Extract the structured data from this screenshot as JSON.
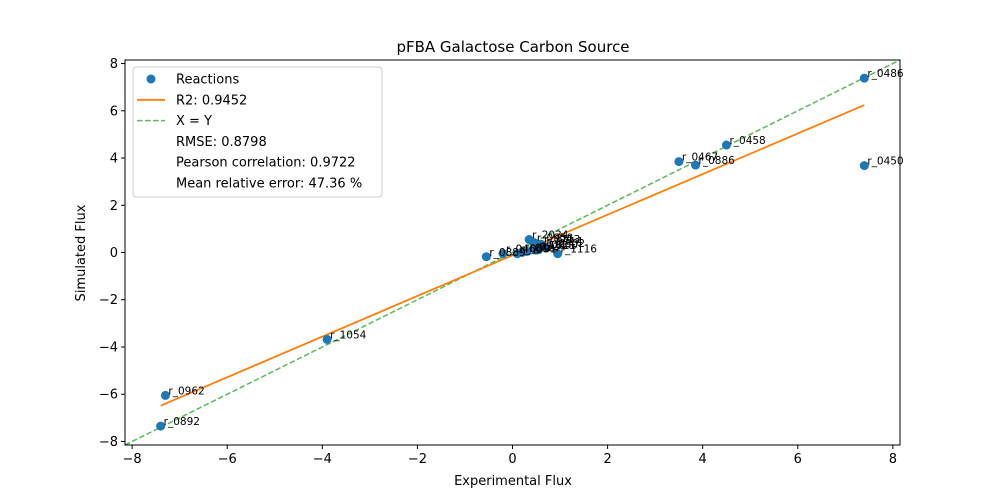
{
  "chart_data": {
    "type": "scatter",
    "title": "pFBA Galactose Carbon Source",
    "xlabel": "Experimental Flux",
    "ylabel": "Simulated Flux",
    "xlim": [
      -8.15,
      8.15
    ],
    "ylim": [
      -8.15,
      8.15
    ],
    "xticks": [
      -8,
      -6,
      -4,
      -2,
      0,
      2,
      4,
      6,
      8
    ],
    "yticks": [
      -8,
      -6,
      -4,
      -2,
      0,
      2,
      4,
      6,
      8
    ],
    "tick_labels": [
      "−8",
      "−6",
      "−4",
      "−2",
      "0",
      "2",
      "4",
      "6",
      "8"
    ],
    "grid": false,
    "legend_position": "top-left",
    "colors": {
      "points": "#1f77b4",
      "fit_line": "#ff7f0e",
      "identity_line": "#5cb85c"
    },
    "legend": [
      {
        "label": "Reactions",
        "marker": "point"
      },
      {
        "label": "R2: 0.9452",
        "marker": "solid-line"
      },
      {
        "label": "X = Y",
        "marker": "dashed-line"
      },
      {
        "label": "RMSE: 0.8798",
        "marker": "none"
      },
      {
        "label": "Pearson correlation: 0.9722",
        "marker": "none"
      },
      {
        "label": "Mean relative error: 47.36 %",
        "marker": "none"
      }
    ],
    "fit_line": {
      "slope": 0.86,
      "intercept": -0.12,
      "x_range": [
        -7.4,
        7.4
      ]
    },
    "identity_line": {
      "x_range": [
        -8.15,
        8.15
      ]
    },
    "points": [
      {
        "x": 7.4,
        "y": 7.38,
        "label": "r_0486"
      },
      {
        "x": 7.4,
        "y": 3.68,
        "label": "r_0450"
      },
      {
        "x": 4.5,
        "y": 4.55,
        "label": "r_0458"
      },
      {
        "x": 3.5,
        "y": 3.85,
        "label": "r_0467"
      },
      {
        "x": 3.85,
        "y": 3.7,
        "label": "r_0886"
      },
      {
        "x": -3.9,
        "y": -3.68,
        "label": "r_1054"
      },
      {
        "x": -7.3,
        "y": -6.05,
        "label": "r_0962"
      },
      {
        "x": -7.4,
        "y": -7.35,
        "label": "r_0892"
      },
      {
        "x": 0.35,
        "y": 0.55,
        "label": "r_2034"
      },
      {
        "x": 0.45,
        "y": 0.42,
        "label": "r_0958"
      },
      {
        "x": 0.6,
        "y": 0.35,
        "label": "r_0713"
      },
      {
        "x": 0.65,
        "y": 0.28,
        "label": "r_0714"
      },
      {
        "x": 0.7,
        "y": 0.2,
        "label": "r_0302"
      },
      {
        "x": 0.55,
        "y": 0.12,
        "label": "r_0280"
      },
      {
        "x": 0.5,
        "y": 0.1,
        "label": "r_1021"
      },
      {
        "x": 0.95,
        "y": -0.05,
        "label": "r_1116"
      },
      {
        "x": 0.3,
        "y": 0.05,
        "label": "r_0534"
      },
      {
        "x": 0.2,
        "y": 0.0,
        "label": "r_0467"
      },
      {
        "x": 0.1,
        "y": -0.05,
        "label": "r_0091"
      },
      {
        "x": -0.2,
        "y": -0.05,
        "label": "r_0466"
      },
      {
        "x": -0.55,
        "y": -0.18,
        "label": "r_0889"
      }
    ]
  }
}
